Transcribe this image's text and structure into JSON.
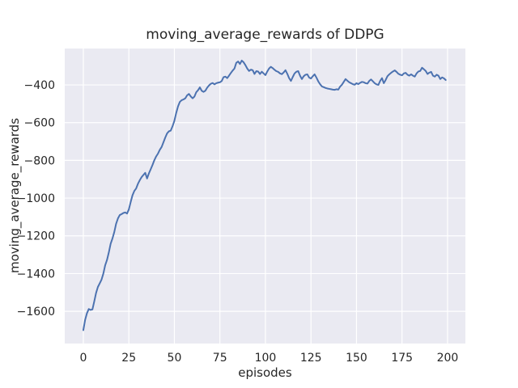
{
  "chart_data": {
    "type": "line",
    "title": "moving_average_rewards of DDPG",
    "xlabel": "episodes",
    "ylabel": "moving_average_rewards",
    "x_ticks": [
      0,
      25,
      50,
      75,
      100,
      125,
      150,
      175,
      200
    ],
    "y_ticks": [
      -400,
      -600,
      -800,
      -1000,
      -1200,
      -1400,
      -1600
    ],
    "xlim": [
      -10.2,
      209.8
    ],
    "ylim": [
      -1771,
      -207
    ],
    "grid": true,
    "legend_position": "none",
    "colors": {
      "line": "#4c72b0",
      "plot_background": "#eaeaf2",
      "grid": "#ffffff",
      "text": "#262626",
      "figure_background": "#ffffff"
    },
    "series": [
      {
        "name": "moving_average_rewards",
        "x_start": 0,
        "x_step": 1,
        "values": [
          -1700,
          -1645,
          -1610,
          -1588,
          -1593,
          -1590,
          -1548,
          -1503,
          -1471,
          -1452,
          -1432,
          -1400,
          -1356,
          -1328,
          -1288,
          -1242,
          -1214,
          -1180,
          -1136,
          -1108,
          -1090,
          -1085,
          -1079,
          -1076,
          -1082,
          -1060,
          -1021,
          -985,
          -962,
          -949,
          -924,
          -905,
          -889,
          -877,
          -866,
          -896,
          -869,
          -847,
          -824,
          -799,
          -779,
          -764,
          -744,
          -729,
          -704,
          -679,
          -657,
          -646,
          -642,
          -619,
          -590,
          -549,
          -514,
          -490,
          -481,
          -477,
          -471,
          -455,
          -448,
          -461,
          -471,
          -462,
          -439,
          -428,
          -413,
          -431,
          -437,
          -431,
          -415,
          -403,
          -394,
          -390,
          -397,
          -391,
          -388,
          -386,
          -379,
          -359,
          -356,
          -364,
          -351,
          -337,
          -324,
          -313,
          -283,
          -276,
          -289,
          -271,
          -280,
          -295,
          -313,
          -326,
          -319,
          -322,
          -342,
          -327,
          -329,
          -342,
          -330,
          -339,
          -348,
          -329,
          -313,
          -304,
          -311,
          -320,
          -327,
          -331,
          -339,
          -343,
          -334,
          -322,
          -341,
          -364,
          -379,
          -358,
          -339,
          -330,
          -327,
          -351,
          -369,
          -354,
          -346,
          -344,
          -361,
          -366,
          -354,
          -344,
          -361,
          -381,
          -396,
          -408,
          -412,
          -416,
          -419,
          -421,
          -423,
          -425,
          -426,
          -423,
          -425,
          -409,
          -399,
          -384,
          -369,
          -378,
          -386,
          -391,
          -396,
          -399,
          -391,
          -396,
          -389,
          -384,
          -386,
          -391,
          -393,
          -379,
          -371,
          -381,
          -391,
          -397,
          -400,
          -379,
          -364,
          -391,
          -374,
          -354,
          -344,
          -336,
          -329,
          -323,
          -331,
          -341,
          -346,
          -349,
          -339,
          -336,
          -346,
          -351,
          -344,
          -351,
          -356,
          -339,
          -329,
          -326,
          -309,
          -317,
          -326,
          -342,
          -335,
          -331,
          -351,
          -356,
          -346,
          -351,
          -369,
          -360,
          -365,
          -374
        ]
      }
    ]
  }
}
